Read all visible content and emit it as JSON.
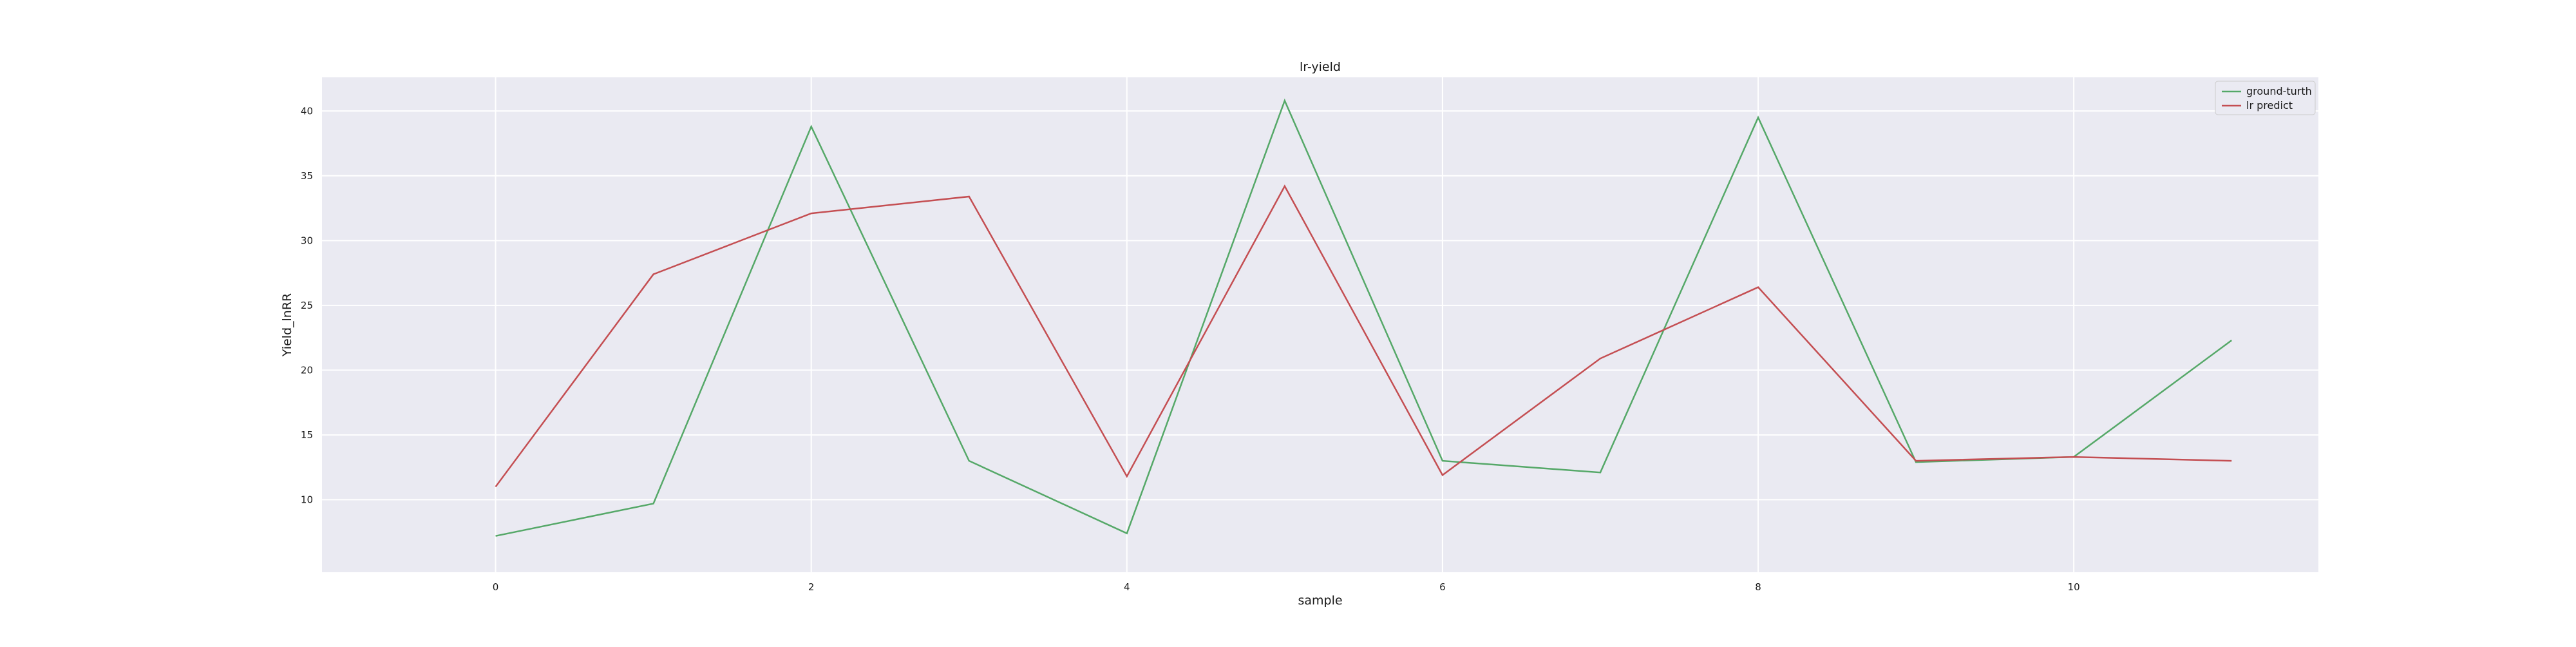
{
  "chart_data": {
    "type": "line",
    "title": "lr-yield",
    "xlabel": "sample",
    "ylabel": "Yield_lnRR",
    "x": [
      0,
      1,
      2,
      3,
      4,
      5,
      6,
      7,
      8,
      9,
      10,
      11
    ],
    "xticks": [
      0,
      2,
      4,
      6,
      8,
      10
    ],
    "yticks": [
      10,
      15,
      20,
      25,
      30,
      35,
      40
    ],
    "xlim": [
      -1.1,
      11.55
    ],
    "ylim": [
      4.4,
      42.6
    ],
    "grid": true,
    "legend_position": "top-right",
    "series": [
      {
        "name": "ground-turth",
        "color": "#55a868",
        "values": [
          7.2,
          9.7,
          38.8,
          13.0,
          7.4,
          40.8,
          13.0,
          12.1,
          39.5,
          12.9,
          13.3,
          22.3
        ]
      },
      {
        "name": "lr predict",
        "color": "#c44e52",
        "values": [
          11.0,
          27.4,
          32.1,
          33.4,
          11.8,
          34.2,
          11.9,
          20.9,
          26.4,
          13.0,
          13.3,
          13.0
        ]
      }
    ]
  },
  "colors": {
    "plot_background": "#eaeaf2",
    "grid": "#ffffff",
    "page_background": "#ffffff"
  }
}
